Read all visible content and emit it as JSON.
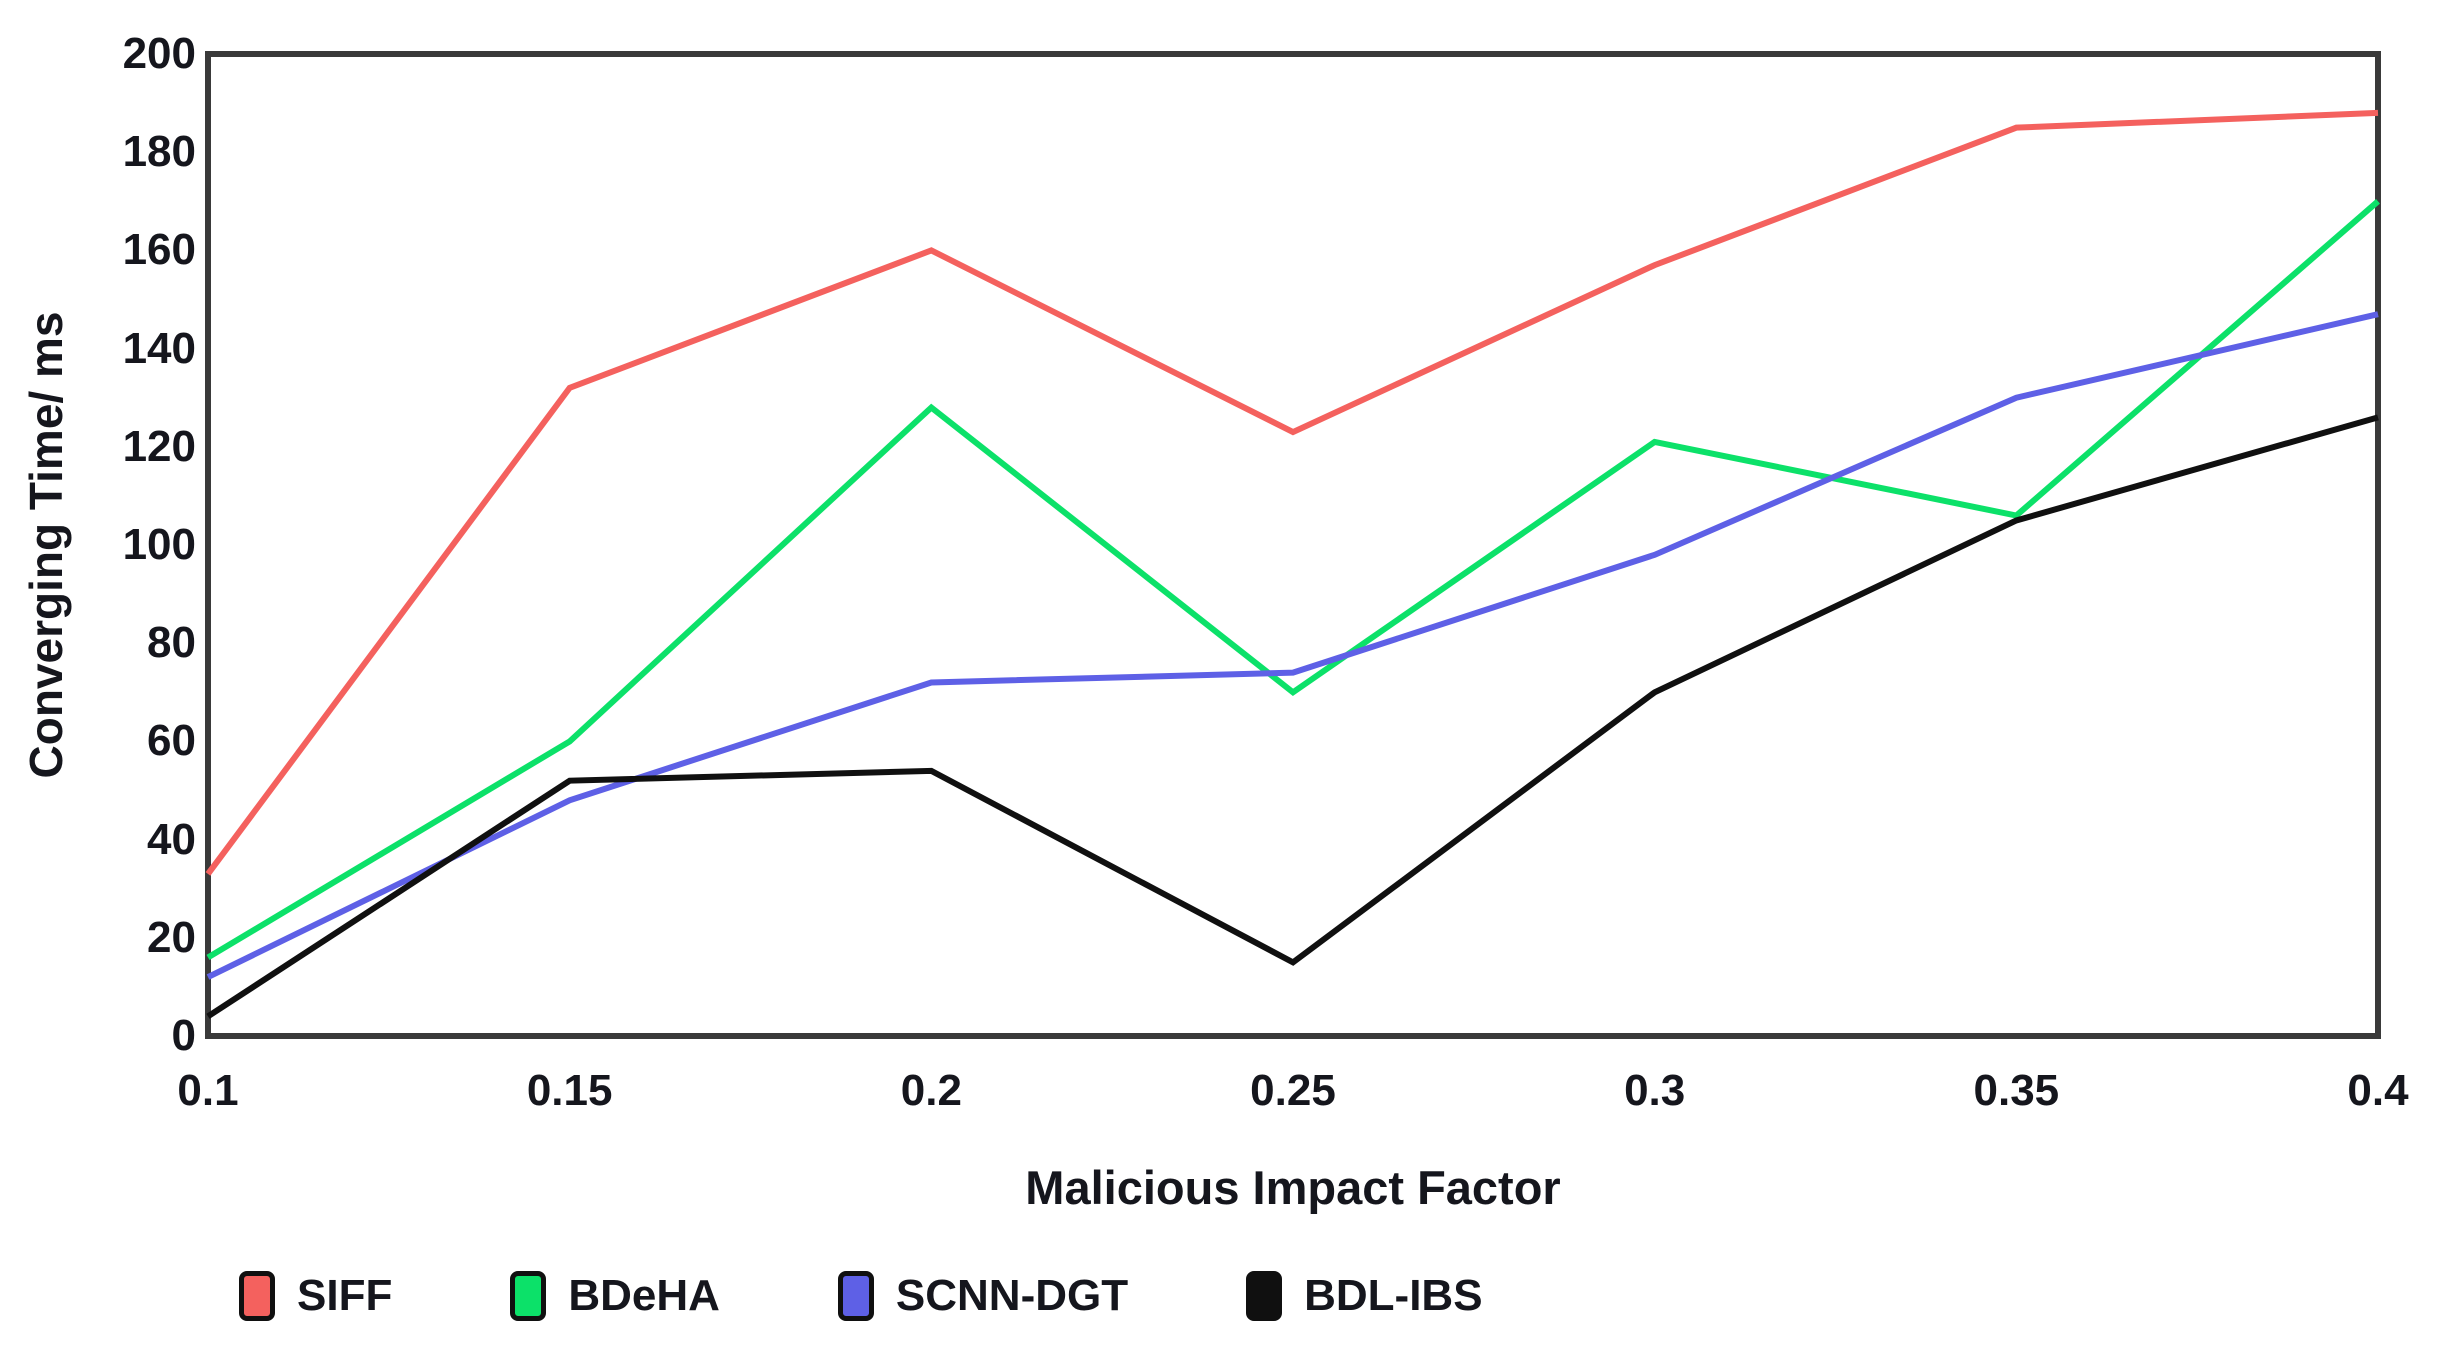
{
  "figure_background": "#ffffff",
  "chart_data": {
    "type": "line",
    "title": "",
    "xlabel": "Malicious Impact Factor",
    "ylabel": "Converging Time/ ms",
    "x": [
      0.1,
      0.15,
      0.2,
      0.25,
      0.3,
      0.35,
      0.4
    ],
    "x_tick_labels": [
      "0.1",
      "0.15",
      "0.2",
      "0.25",
      "0.3",
      "0.35",
      "0.4"
    ],
    "y_ticks": [
      0,
      20,
      40,
      60,
      80,
      100,
      120,
      140,
      160,
      180,
      200
    ],
    "xlim": [
      0.1,
      0.4
    ],
    "ylim": [
      0,
      200
    ],
    "grid": false,
    "legend_position": "bottom",
    "axis_color": "#3a3a3a",
    "text_color": "#15161d",
    "series": [
      {
        "name": "SIFF",
        "color": "#f4615e",
        "values": [
          33,
          132,
          160,
          123,
          157,
          185,
          188
        ]
      },
      {
        "name": "BDeHA",
        "color": "#0ce169",
        "values": [
          16,
          60,
          128,
          70,
          121,
          106,
          170
        ]
      },
      {
        "name": "SCNN-DGT",
        "color": "#5e60e6",
        "values": [
          12,
          48,
          72,
          74,
          98,
          130,
          147
        ]
      },
      {
        "name": "BDL-IBS",
        "color": "#101010",
        "values": [
          4,
          52,
          54,
          15,
          70,
          105,
          126
        ]
      }
    ]
  }
}
